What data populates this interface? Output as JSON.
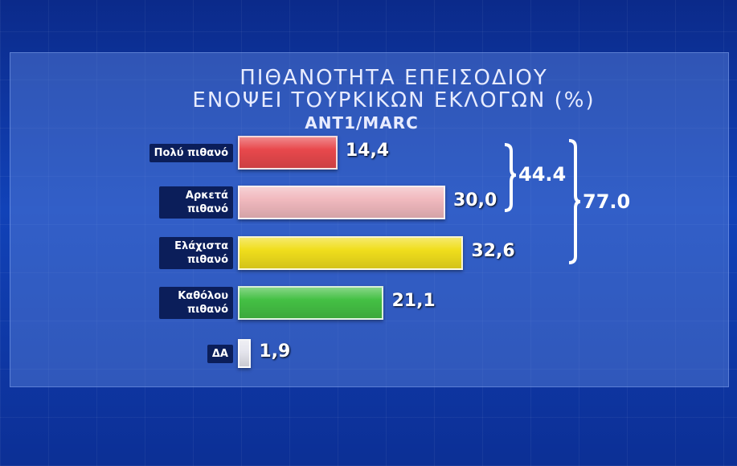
{
  "chart_data": {
    "type": "bar",
    "title": "ΠΙΘΑΝΟΤΗΤΑ ΕΠΕΙΣΟΔΙΟΥ",
    "subtitle": "ΕΝΟΨΕΙ ΤΟΥΡΚΙΚΩΝ ΕΚΛΟΓΩΝ (%)",
    "source": "ANT1/MARC",
    "categories": [
      "Πολύ πιθανό",
      "Αρκετά πιθανό",
      "Ελάχιστα πιθανό",
      "Καθόλου πιθανό",
      "ΔΑ"
    ],
    "values": [
      14.4,
      30.0,
      32.6,
      21.1,
      1.9
    ],
    "value_labels": [
      "14,4",
      "30,0",
      "32,6",
      "21,1",
      "1,9"
    ],
    "colors": [
      "#e8484c",
      "#f1b9be",
      "#f0de1c",
      "#44c044",
      "#e6e6ee"
    ],
    "brackets": [
      {
        "value": 44.4,
        "label": "44.4"
      },
      {
        "value": 77.0,
        "label": "77.0"
      }
    ]
  }
}
